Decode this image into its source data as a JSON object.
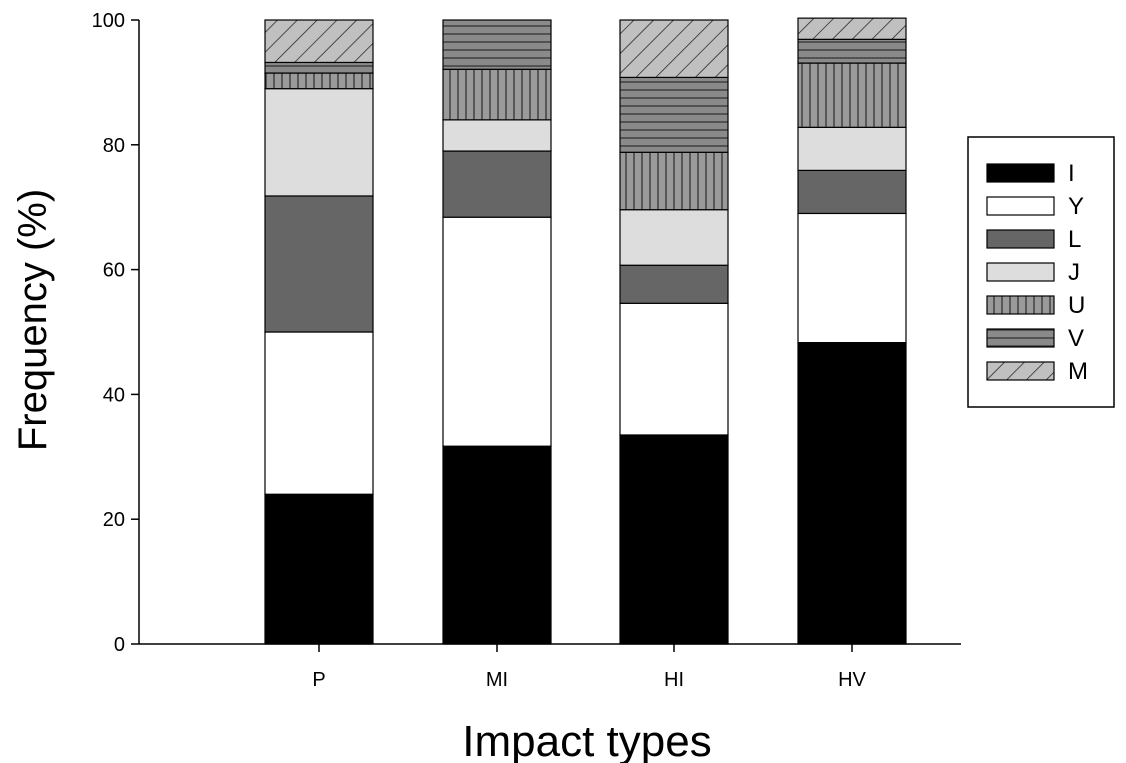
{
  "chart_data": {
    "type": "bar",
    "stacked": true,
    "title": "",
    "xlabel": "Impact types",
    "ylabel": "Frequency (%)",
    "ylim": [
      0,
      100
    ],
    "yticks": [
      0,
      20,
      40,
      60,
      80,
      100
    ],
    "categories": [
      "P",
      "MI",
      "HI",
      "HV"
    ],
    "grid": false,
    "legend_position": "right",
    "series": [
      {
        "name": "I",
        "color": "#000000",
        "pattern": "solid",
        "values": [
          24.0,
          31.7,
          33.5,
          48.3
        ]
      },
      {
        "name": "Y",
        "color": "#ffffff",
        "pattern": "solid",
        "values": [
          26.0,
          36.7,
          21.1,
          20.7
        ]
      },
      {
        "name": "L",
        "color": "#666666",
        "pattern": "solid",
        "values": [
          21.8,
          10.6,
          6.1,
          6.9
        ]
      },
      {
        "name": "J",
        "color": "#dddddd",
        "pattern": "solid",
        "values": [
          17.2,
          5.0,
          8.9,
          6.9
        ]
      },
      {
        "name": "U",
        "color": "#9a9a9a",
        "pattern": "vertical-lines",
        "values": [
          2.5,
          8.1,
          9.2,
          10.3
        ]
      },
      {
        "name": "V",
        "color": "#8a8a8a",
        "pattern": "horizontal-lines",
        "values": [
          1.7,
          7.9,
          12.0,
          3.8
        ]
      },
      {
        "name": "M",
        "color": "#c0c0c0",
        "pattern": "diagonal-lines",
        "values": [
          6.8,
          0.0,
          9.2,
          3.4
        ]
      }
    ]
  }
}
